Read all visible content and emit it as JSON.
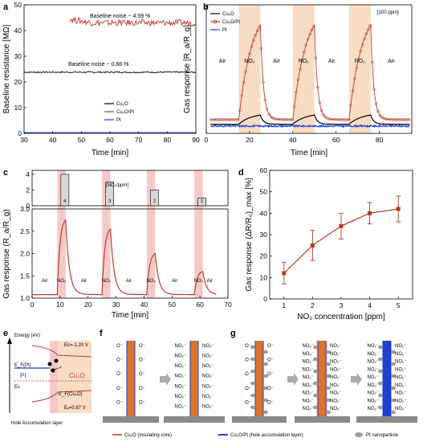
{
  "panels": {
    "a": "a",
    "b": "b",
    "c": "c",
    "d": "d",
    "e": "e",
    "f": "f",
    "g": "g"
  },
  "chart_data": [
    {
      "panel": "a",
      "type": "line",
      "xlabel": "Time [min]",
      "ylabel": "Baseline resistance [MΩ]",
      "xlim": [
        30,
        90
      ],
      "ylim": [
        0,
        50
      ],
      "xticks": [
        "30",
        "40",
        "50",
        "60",
        "70",
        "80",
        "90"
      ],
      "yticks": [
        "0",
        "10",
        "20",
        "30",
        "40",
        "50"
      ],
      "annotations": [
        "Baseline noise ~ 4.59 %",
        "Baseline noise ~ 0.88 %"
      ],
      "legend": [
        "Cu₂O",
        "Cu₂O/Pt",
        "Pt"
      ],
      "legend_position": "bottom-right",
      "series": [
        {
          "name": "Cu₂O",
          "color": "#000000",
          "mean": 23.8,
          "noise": 0.88
        },
        {
          "name": "Cu₂O/Pt",
          "color": "#c0392b",
          "mean": 43.0,
          "noise": 4.59,
          "start": 46
        },
        {
          "name": "Pt",
          "color": "#1f3fd6",
          "mean": 0.3,
          "noise": 0
        }
      ]
    },
    {
      "panel": "b",
      "type": "line",
      "xlabel": "Time [min]",
      "ylabel": "Gas response [R_a/R_g]",
      "condition": "[100 ppm]",
      "xlim": [
        0,
        95
      ],
      "ylim": [
        0,
        14
      ],
      "xticks": [
        "0",
        "20",
        "40",
        "60",
        "80"
      ],
      "region_labels": [
        "Air",
        "NO₂",
        "Air",
        "NO₂",
        "Air",
        "NO₂",
        "Air"
      ],
      "regions": [
        [
          15,
          25
        ],
        [
          40,
          50
        ],
        [
          66,
          76
        ]
      ],
      "legend": [
        "Cu₂O",
        "Cu₂O/Pt",
        "Pt"
      ],
      "legend_position": "top-left",
      "series": [
        {
          "name": "Cu₂O",
          "color": "#000000",
          "baseline": 1.0,
          "peak": 2.0
        },
        {
          "name": "Cu₂O/Pt",
          "color": "#c0392b",
          "baseline": 1.5,
          "peak": 11.8
        },
        {
          "name": "Pt",
          "color": "#1f3fd6",
          "baseline": 0.8,
          "peak": 0.8
        }
      ]
    },
    {
      "panel": "c",
      "type": "bar",
      "legend_title": "[NO₂/ppm]",
      "yticks": [
        "0",
        "2",
        "4"
      ],
      "bar_labels": [
        "4",
        "3",
        "2",
        "1"
      ],
      "categories": [
        10,
        26,
        42,
        59
      ],
      "values": [
        4,
        3,
        2,
        1
      ]
    },
    {
      "panel": "c",
      "type": "line",
      "xlabel": "Time [min]",
      "ylabel": "Gas response (R_a/R_g)",
      "xlim": [
        0,
        70
      ],
      "ylim": [
        1.0,
        3.0
      ],
      "xticks": [
        "0",
        "10",
        "20",
        "30",
        "40",
        "50",
        "60",
        "70"
      ],
      "yticks": [
        "1.0",
        "1.5",
        "2.0",
        "2.5",
        "3.0"
      ],
      "region_labels": [
        "Air",
        "NO₂",
        "Air",
        "NO₂",
        "Air",
        "NO₂",
        "Air",
        "NO₂",
        "Air"
      ],
      "regions": [
        [
          9,
          12
        ],
        [
          25,
          28
        ],
        [
          41,
          44
        ],
        [
          58,
          61
        ]
      ],
      "peaks": [
        2.75,
        2.55,
        2.0,
        1.6
      ],
      "series": [
        {
          "color": "#c0392b",
          "baseline": 1.08
        }
      ]
    },
    {
      "panel": "d",
      "type": "line",
      "xlabel": "NO₂ concentration [ppm]",
      "ylabel": "Gas response (ΔR/R₀)_max [%]",
      "xlim": [
        0.5,
        5.5
      ],
      "ylim": [
        0,
        60
      ],
      "xticks": [
        "1",
        "2",
        "3",
        "4",
        "5"
      ],
      "yticks": [
        "0",
        "10",
        "20",
        "30",
        "40",
        "50",
        "60"
      ],
      "x": [
        1,
        2,
        3,
        4,
        5
      ],
      "series": [
        {
          "color": "#b5391f",
          "values": [
            12,
            25,
            34,
            40,
            42
          ],
          "errors": [
            5,
            7,
            6,
            5,
            6
          ]
        }
      ]
    }
  ],
  "schematic": {
    "e": {
      "energy_label": "Energy (eV)",
      "ec_label": "Eᴄ=-1.20 V",
      "ev_label": "Eᵥ=0.87 V",
      "ef_pt_label": "E_F(Pt)",
      "pt_label": "Pt",
      "ef_cu2o_label": "E_F(Cu₂O)",
      "cu2o_label": "Cu₂O",
      "ef_label": "Eᴄ",
      "layer_label": "Hole Accumulation layer"
    },
    "adsorbate_o": "O⁻",
    "adsorbate_no2": "NO₂⁻",
    "legend": {
      "cu2o": "Cu₂O (insulating core)",
      "cu2o_pt": "Cu₂O/Pt (hole accumulation layer)",
      "pt": "Pt nanoparticle"
    }
  },
  "colors": {
    "red": "#c0392b",
    "black": "#000000",
    "blue": "#1f3fd6",
    "peach": "#f9dcc4",
    "pink": "#f6c9c9",
    "orange": "#d9732e",
    "gray": "#8a8a8a"
  }
}
